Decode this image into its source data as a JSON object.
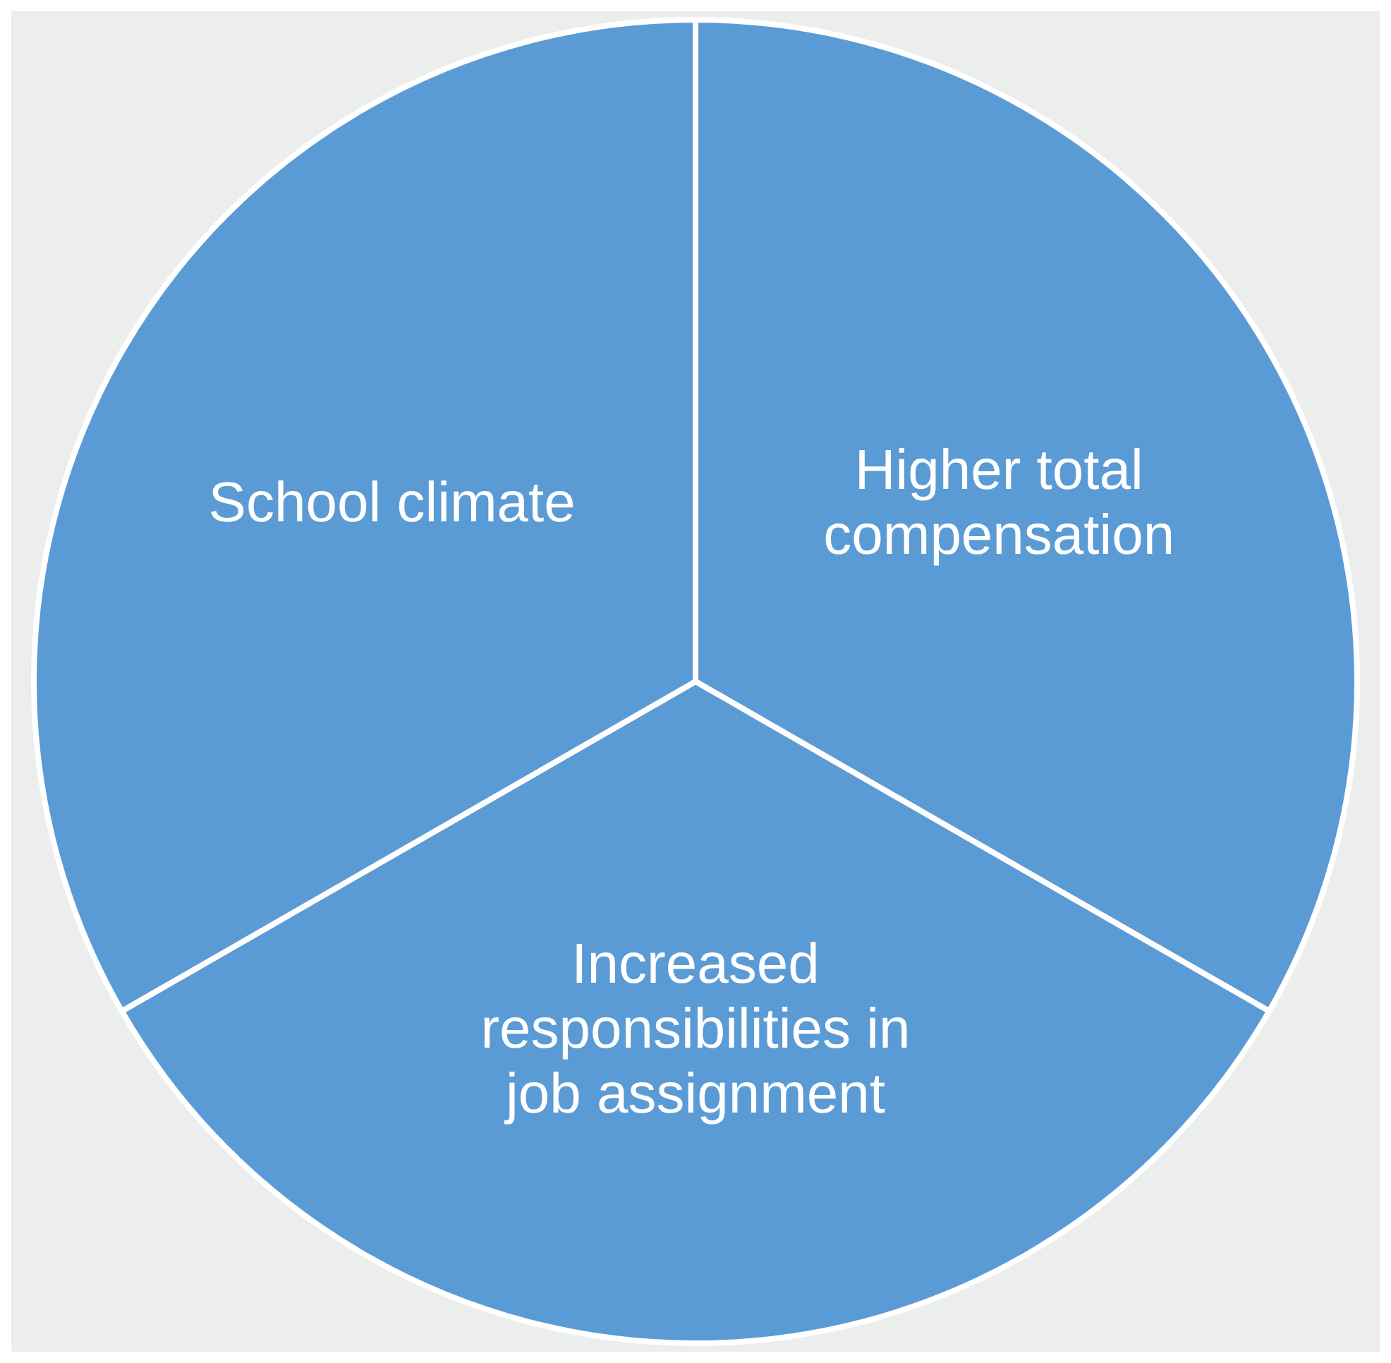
{
  "chart_data": {
    "type": "pie",
    "categories": [
      "School climate",
      "Increased responsibilities in job assignment",
      "Higher total compensation"
    ],
    "values": [
      33.3,
      33.4,
      33.3
    ],
    "colors": [
      "#5b9bd5",
      "#5b9bd5",
      "#5b9bd5"
    ],
    "legend": false
  }
}
